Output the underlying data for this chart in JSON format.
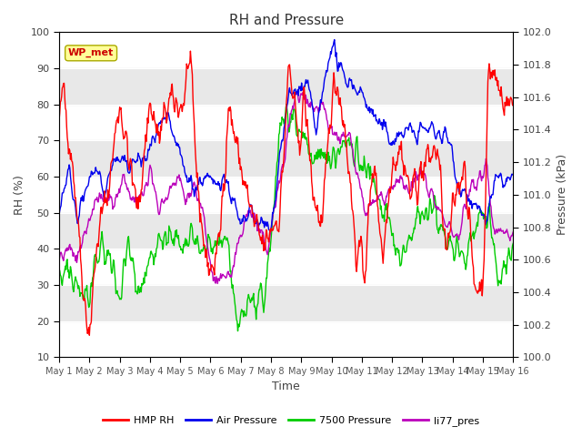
{
  "title": "RH and Pressure",
  "xlabel": "Time",
  "ylabel_left": "RH (%)",
  "ylabel_right": "Pressure (kPa)",
  "ylim_left": [
    10,
    100
  ],
  "ylim_right": [
    100.0,
    102.0
  ],
  "x_ticks_labels": [
    "May 1",
    "May 2",
    "May 3",
    "May 4",
    "May 5",
    "May 6",
    "May 7",
    "May 8",
    "May 9",
    "May 10",
    "May 11",
    "May 12",
    "May 13",
    "May 14",
    "May 15",
    "May 16"
  ],
  "legend_labels": [
    "HMP RH",
    "Air Pressure",
    "7500 Pressure",
    "li77_pres"
  ],
  "legend_colors": [
    "#ff0000",
    "#0000ee",
    "#00cc00",
    "#bb00bb"
  ],
  "annotation_text": "WP_met",
  "annotation_color": "#cc0000",
  "annotation_bg": "#ffff99",
  "annotation_edge": "#aaaa00",
  "fig_bg": "#ffffff",
  "plot_bg": "#ffffff",
  "band_color": "#e8e8e8",
  "line_colors": {
    "hmp_rh": "#ff0000",
    "air_pressure": "#0000ee",
    "pressure_7500": "#00cc00",
    "li77_pres": "#bb00bb"
  },
  "line_width": 1.0,
  "n_points": 720,
  "seed": 42
}
